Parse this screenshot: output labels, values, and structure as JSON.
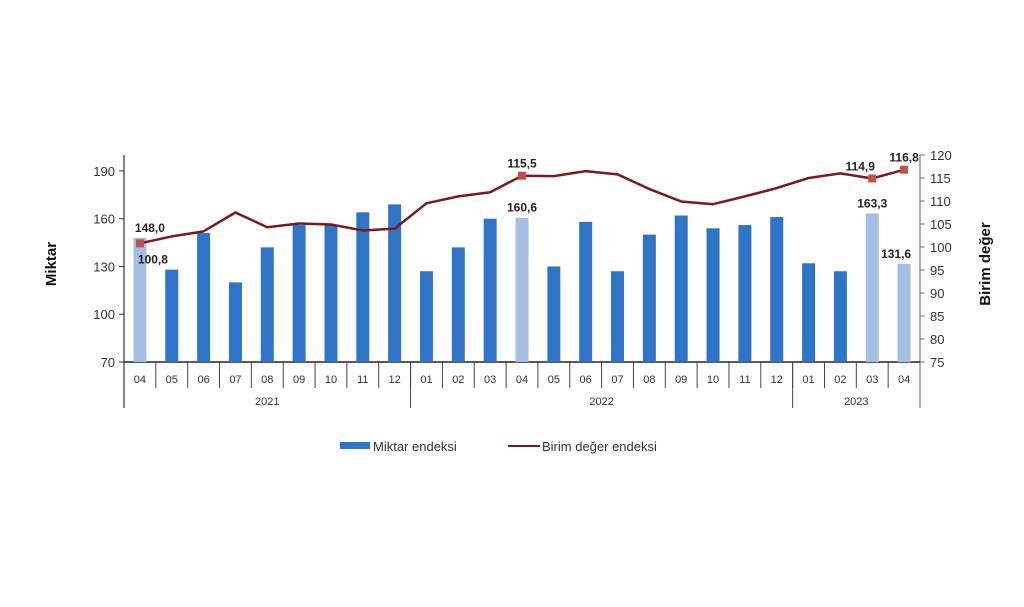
{
  "chart_data": {
    "type": "bar+line",
    "categories": [
      "04",
      "05",
      "06",
      "07",
      "08",
      "09",
      "10",
      "11",
      "12",
      "01",
      "02",
      "03",
      "04",
      "05",
      "06",
      "07",
      "08",
      "09",
      "10",
      "11",
      "12",
      "01",
      "02",
      "03",
      "04"
    ],
    "years": [
      {
        "label": "2021",
        "count": 9
      },
      {
        "label": "2022",
        "count": 12
      },
      {
        "label": "2023",
        "count": 4
      }
    ],
    "left_axis": {
      "label": "Miktar",
      "ylim": [
        70,
        200
      ],
      "ticks": [
        70,
        100,
        130,
        160,
        190
      ]
    },
    "right_axis": {
      "label": "Birim değer",
      "ylim": [
        75,
        120
      ],
      "ticks": [
        75,
        80,
        85,
        90,
        95,
        100,
        105,
        110,
        115,
        120
      ]
    },
    "series": [
      {
        "name": "Miktar endeksi",
        "type": "bar",
        "axis": "left",
        "color": "#2f74c6",
        "highlight_color": "#a4bfe3",
        "values": [
          148.0,
          128,
          151,
          120,
          142,
          156,
          156,
          164,
          169,
          127,
          142,
          160,
          160.6,
          130,
          158,
          127,
          150,
          162,
          154,
          156,
          161,
          132,
          127,
          163.3,
          131.6
        ],
        "highlighted": [
          0,
          12,
          23,
          24
        ],
        "labels": {
          "0": "148,0",
          "12": "160,6",
          "23": "163,3",
          "24": "131,6"
        }
      },
      {
        "name": "Birim değer endeksi",
        "type": "line",
        "axis": "right",
        "color": "#7b1a1e",
        "marker_color": "#c0504d",
        "values": [
          100.8,
          102.3,
          103.4,
          107.5,
          104.3,
          105.1,
          104.9,
          103.6,
          104.0,
          109.5,
          111.0,
          111.9,
          115.5,
          115.4,
          116.5,
          115.8,
          112.6,
          109.9,
          109.3,
          111.0,
          112.8,
          115.0,
          116.0,
          114.9,
          116.8
        ],
        "markers": [
          0,
          12,
          23,
          24
        ],
        "labels": {
          "0": "100,8",
          "12": "115,5",
          "23": "114,9",
          "24": "116,8"
        }
      }
    ],
    "legend_placement": "bottom",
    "grid": false
  }
}
